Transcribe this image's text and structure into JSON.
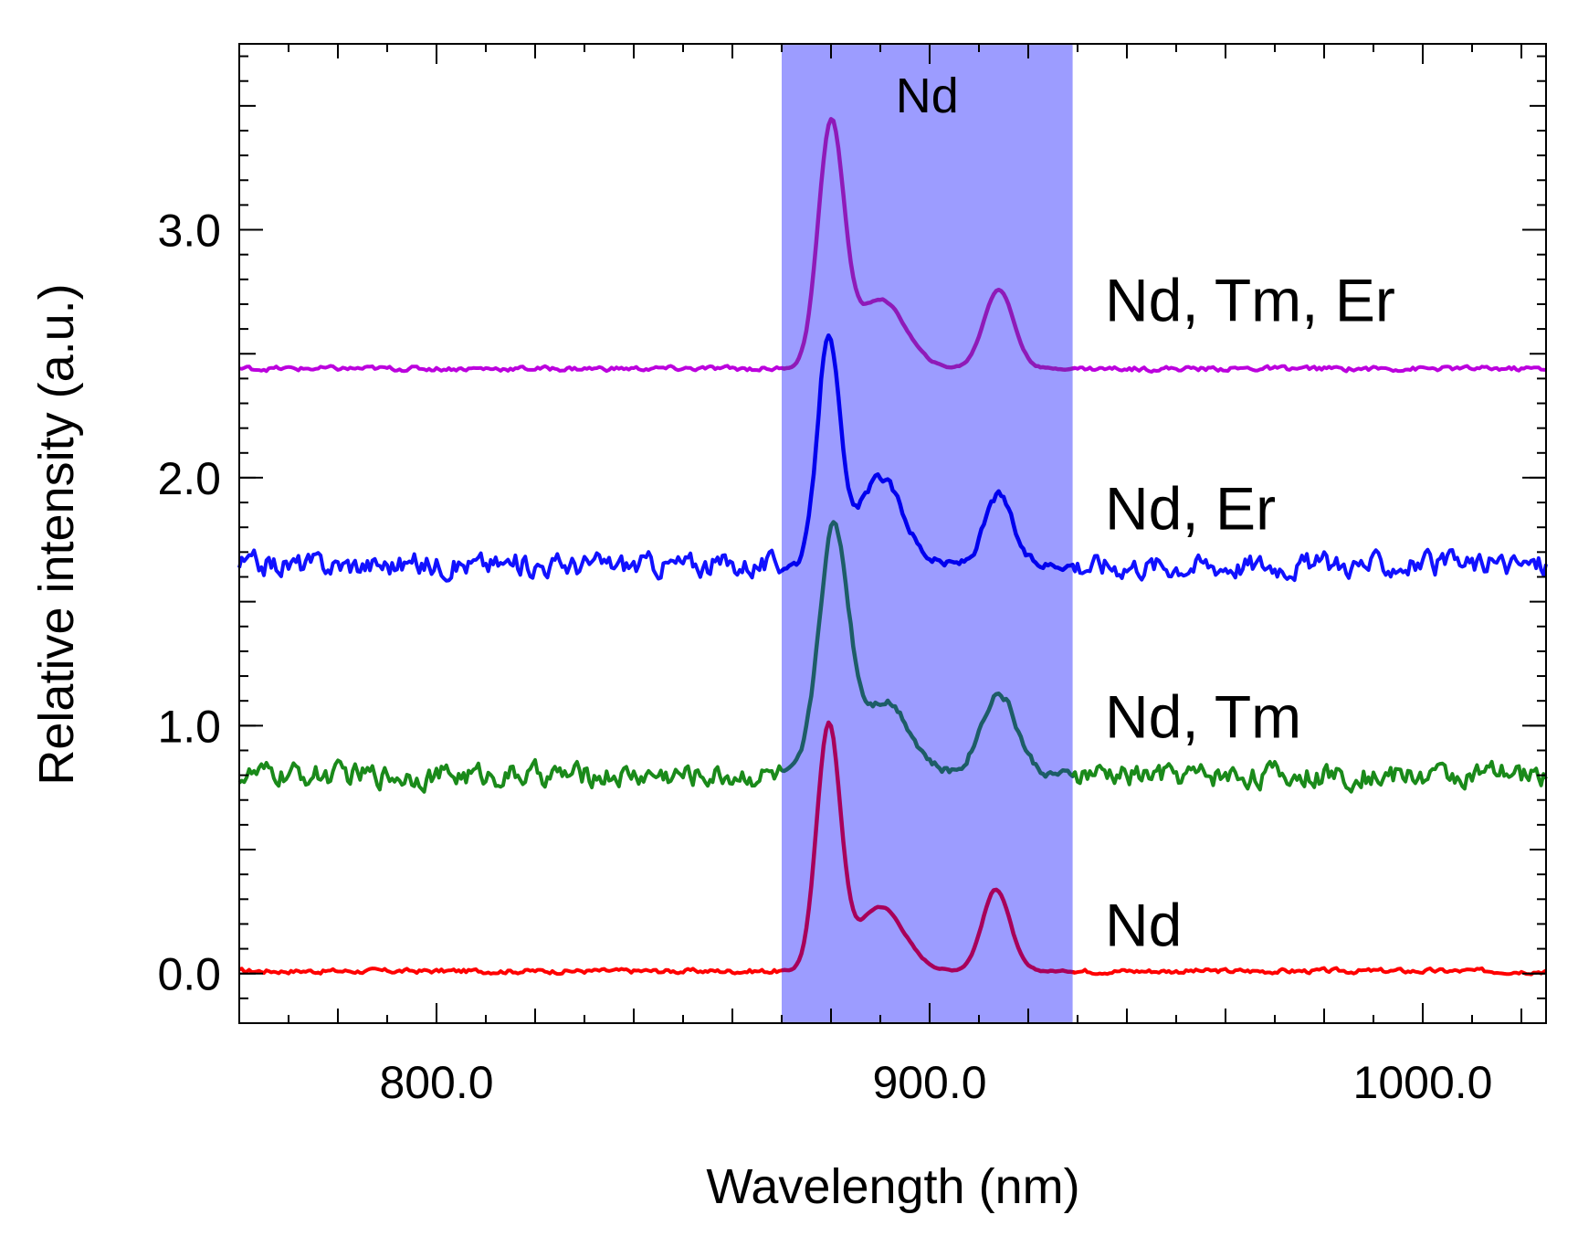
{
  "chart_data": {
    "type": "line",
    "title": "",
    "xlabel": "Wavelength (nm)",
    "ylabel": "Relative intensity (a.u.)",
    "xlim": [
      760,
      1025
    ],
    "ylim": [
      -0.2,
      3.75
    ],
    "x_ticks": [
      {
        "value": 800,
        "label": "800.0"
      },
      {
        "value": 900,
        "label": "900.0"
      },
      {
        "value": 1000,
        "label": "1000.0"
      }
    ],
    "y_ticks": [
      {
        "value": 0,
        "label": "0.0"
      },
      {
        "value": 1,
        "label": "1.0"
      },
      {
        "value": 2,
        "label": "2.0"
      },
      {
        "value": 3,
        "label": "3.0"
      }
    ],
    "band": {
      "label": "Nd",
      "x_start": 870,
      "x_end": 929,
      "color": "#9c9cff"
    },
    "series": [
      {
        "name": "Nd",
        "label": "Nd",
        "outside_color": "#ff0000",
        "inside_color": "#a8005a",
        "baseline": 0.01,
        "noise": 0.008,
        "label_y": 0.2,
        "peaks": [
          {
            "center": 879.5,
            "height": 0.98,
            "width": 2.4
          },
          {
            "center": 890,
            "height": 0.26,
            "width": 4.8
          },
          {
            "center": 913.5,
            "height": 0.33,
            "width": 2.8
          }
        ]
      },
      {
        "name": "Nd, Tm",
        "label": "Nd, Tm",
        "outside_color": "#1a8a1a",
        "inside_color": "#1d5d67",
        "baseline": 0.8,
        "noise": 0.04,
        "label_y": 1.04,
        "peaks": [
          {
            "center": 880.5,
            "height": 0.98,
            "width": 3.0
          },
          {
            "center": 891,
            "height": 0.3,
            "width": 5.0
          },
          {
            "center": 914,
            "height": 0.33,
            "width": 3.6
          }
        ]
      },
      {
        "name": "Nd, Er",
        "label": "Nd, Er",
        "outside_color": "#1111ff",
        "inside_color": "#0000ee",
        "baseline": 1.65,
        "noise": 0.04,
        "label_y": 1.88,
        "peaks": [
          {
            "center": 879.5,
            "height": 0.92,
            "width": 2.2
          },
          {
            "center": 890,
            "height": 0.35,
            "width": 4.5
          },
          {
            "center": 914,
            "height": 0.28,
            "width": 2.8
          }
        ]
      },
      {
        "name": "Nd, Tm, Er",
        "label": "Nd, Tm, Er",
        "outside_color": "#bb00dd",
        "inside_color": "#8f1ab8",
        "baseline": 2.44,
        "noise": 0.008,
        "label_y": 2.72,
        "peaks": [
          {
            "center": 880,
            "height": 0.97,
            "width": 2.6
          },
          {
            "center": 890,
            "height": 0.28,
            "width": 5.0
          },
          {
            "center": 914,
            "height": 0.32,
            "width": 3.0
          }
        ]
      }
    ]
  }
}
